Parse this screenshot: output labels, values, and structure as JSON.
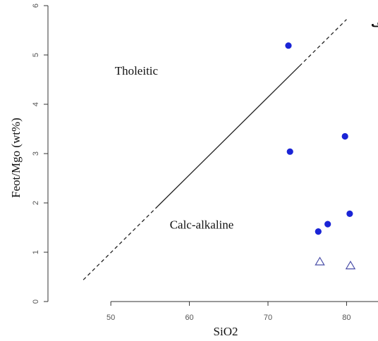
{
  "chart_data": {
    "type": "scatter",
    "corner_label": "الف",
    "xlabel": "SiO2",
    "ylabel": "Feot/Mgo (wt%)",
    "xlim": [
      42,
      84
    ],
    "ylim": [
      0,
      6
    ],
    "x_ticks": [
      "50",
      "60",
      "70",
      "80"
    ],
    "y_ticks": [
      "0",
      "1",
      "2",
      "3",
      "4",
      "5",
      "6"
    ],
    "grid": false,
    "region_labels": [
      {
        "text": "Tholeitic",
        "x": 50.5,
        "y": 4.6
      },
      {
        "text": "Calc-alkaline",
        "x": 57.5,
        "y": 1.48
      }
    ],
    "divider_line": {
      "x": [
        46.5,
        80
      ],
      "y": [
        0.44,
        5.72
      ],
      "solid_x": [
        56,
        74
      ]
    },
    "series": [
      {
        "marker": "filled-circle",
        "color": "#1a24d6",
        "x": [
          72.6,
          72.8,
          79.8,
          80.4,
          77.6,
          76.4
        ],
        "y": [
          5.19,
          3.04,
          3.35,
          1.78,
          1.57,
          1.42
        ]
      },
      {
        "marker": "open-triangle",
        "color": "#4b4fa8",
        "x": [
          76.6,
          80.5
        ],
        "y": [
          0.8,
          0.72
        ]
      }
    ]
  }
}
